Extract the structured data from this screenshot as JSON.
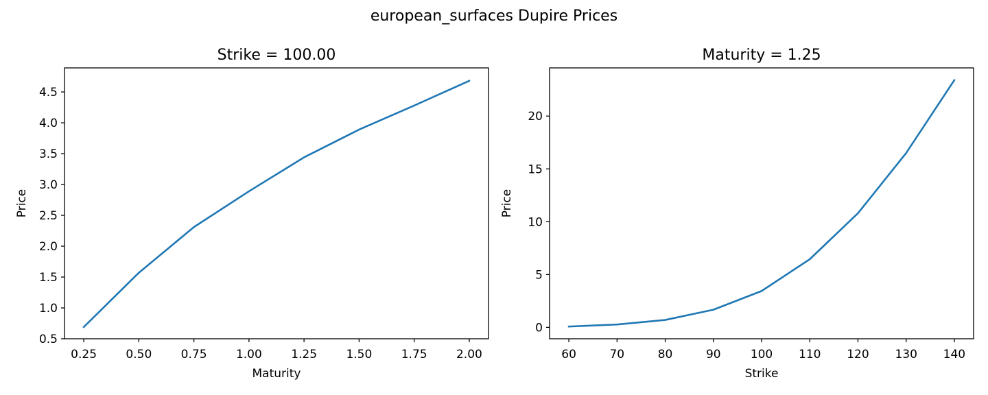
{
  "figure": {
    "suptitle": "european_surfaces Dupire Prices"
  },
  "chart_data": [
    {
      "type": "line",
      "title": "Strike = 100.00",
      "xlabel": "Maturity",
      "ylabel": "Price",
      "x": [
        0.25,
        0.5,
        0.75,
        1.0,
        1.25,
        1.5,
        1.75,
        2.0
      ],
      "series": [
        {
          "values": [
            0.69,
            1.57,
            2.31,
            2.89,
            3.44,
            3.89,
            4.28,
            4.68
          ],
          "color": "#1f77b4"
        }
      ],
      "xlim": [
        0.1625,
        2.0875
      ],
      "ylim": [
        0.5,
        4.89
      ],
      "xticks": [
        0.25,
        0.5,
        0.75,
        1.0,
        1.25,
        1.5,
        1.75,
        2.0
      ],
      "xtick_labels": [
        "0.25",
        "0.50",
        "0.75",
        "1.00",
        "1.25",
        "1.50",
        "1.75",
        "2.00"
      ],
      "yticks": [
        0.5,
        1.0,
        1.5,
        2.0,
        2.5,
        3.0,
        3.5,
        4.0,
        4.5
      ],
      "ytick_labels": [
        "0.5",
        "1.0",
        "1.5",
        "2.0",
        "2.5",
        "3.0",
        "3.5",
        "4.0",
        "4.5"
      ],
      "grid": false,
      "legend": "none"
    },
    {
      "type": "line",
      "title": "Maturity = 1.25",
      "xlabel": "Strike",
      "ylabel": "Price",
      "x": [
        60,
        70,
        80,
        90,
        100,
        110,
        120,
        130,
        140
      ],
      "series": [
        {
          "values": [
            0.08,
            0.27,
            0.7,
            1.67,
            3.44,
            6.45,
            10.8,
            16.5,
            23.4
          ],
          "color": "#1f77b4"
        }
      ],
      "xlim": [
        56,
        144
      ],
      "ylim": [
        -1.08,
        24.56
      ],
      "xticks": [
        60,
        70,
        80,
        90,
        100,
        110,
        120,
        130,
        140
      ],
      "xtick_labels": [
        "60",
        "70",
        "80",
        "90",
        "100",
        "110",
        "120",
        "130",
        "140"
      ],
      "yticks": [
        0,
        5,
        10,
        15,
        20
      ],
      "ytick_labels": [
        "0",
        "5",
        "10",
        "15",
        "20"
      ],
      "grid": false,
      "legend": "none"
    }
  ]
}
